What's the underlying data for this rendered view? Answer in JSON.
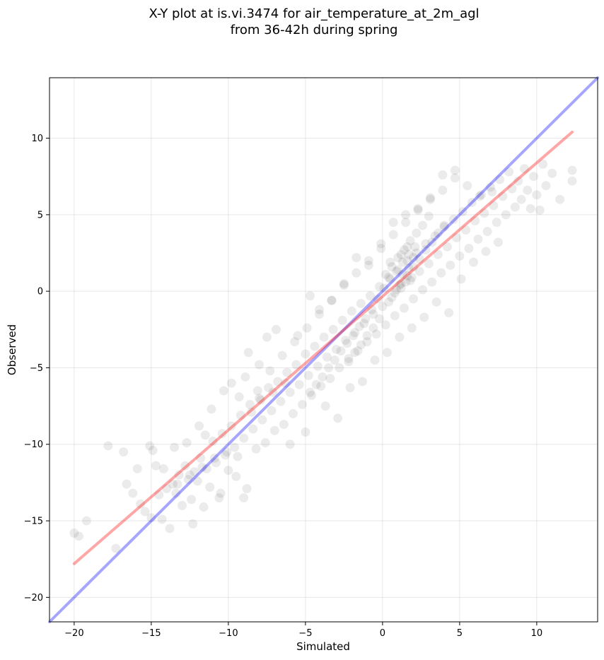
{
  "chart_data": {
    "type": "scatter",
    "title_lines": [
      "X-Y plot at is.vi.3474 for air_temperature_at_2m_agl",
      "from 36-42h during spring"
    ],
    "xlabel": "Simulated",
    "ylabel": "Observed",
    "xlim": [
      -21.6,
      13.95
    ],
    "ylim": [
      -21.6,
      13.95
    ],
    "xticks": [
      -20,
      -15,
      -10,
      -5,
      0,
      5,
      10
    ],
    "yticks": [
      -20,
      -15,
      -10,
      -5,
      0,
      5,
      10
    ],
    "tick_labels": [
      "−20",
      "−15",
      "−10",
      "−5",
      "0",
      "5",
      "10"
    ],
    "grid": true,
    "point_color": "#000000",
    "point_alpha": 0.08,
    "lines": [
      {
        "kind": "one-to-one",
        "color": "#0000ff",
        "alpha": 0.35,
        "x": [
          -21.6,
          13.95
        ],
        "y": [
          -21.6,
          13.95
        ]
      },
      {
        "kind": "fit",
        "color": "#ff0000",
        "alpha": 0.35,
        "x": [
          -20,
          12.3
        ],
        "y": [
          -17.8,
          10.4
        ]
      }
    ],
    "points": [
      [
        -20,
        -15.8
      ],
      [
        -19.7,
        -16.0
      ],
      [
        -19.2,
        -15.0
      ],
      [
        -17.8,
        -10.1
      ],
      [
        -17.3,
        -16.8
      ],
      [
        -16.8,
        -10.5
      ],
      [
        -16.6,
        -12.6
      ],
      [
        -16.2,
        -13.2
      ],
      [
        -15.9,
        -11.6
      ],
      [
        -15.7,
        -13.9
      ],
      [
        -15.4,
        -14.4
      ],
      [
        -15.1,
        -10.1
      ],
      [
        -15.0,
        -14.8
      ],
      [
        -14.9,
        -10.4
      ],
      [
        -14.7,
        -11.4
      ],
      [
        -14.5,
        -13.3
      ],
      [
        -14.3,
        -14.9
      ],
      [
        -14.0,
        -12.9
      ],
      [
        -13.8,
        -15.5
      ],
      [
        -13.6,
        -12.6
      ],
      [
        -13.4,
        -13.2
      ],
      [
        -13.2,
        -12.0
      ],
      [
        -13.0,
        -14.0
      ],
      [
        -12.8,
        -11.4
      ],
      [
        -12.6,
        -12.3
      ],
      [
        -12.4,
        -13.6
      ],
      [
        -12.2,
        -11.8
      ],
      [
        -12.0,
        -12.4
      ],
      [
        -11.8,
        -10.9
      ],
      [
        -11.6,
        -14.1
      ],
      [
        -11.4,
        -11.6
      ],
      [
        -11.2,
        -12.8
      ],
      [
        -11.0,
        -9.8
      ],
      [
        -10.8,
        -11.2
      ],
      [
        -10.6,
        -13.5
      ],
      [
        -10.4,
        -9.3
      ],
      [
        -10.2,
        -10.7
      ],
      [
        -10.0,
        -11.7
      ],
      [
        -9.8,
        -8.8
      ],
      [
        -9.6,
        -10.2
      ],
      [
        -9.4,
        -10.8
      ],
      [
        -9.2,
        -8.1
      ],
      [
        -9.0,
        -9.6
      ],
      [
        -8.8,
        -12.9
      ],
      [
        -8.6,
        -7.4
      ],
      [
        -8.4,
        -9.0
      ],
      [
        -8.2,
        -10.3
      ],
      [
        -8.0,
        -7.0
      ],
      [
        -7.8,
        -8.4
      ],
      [
        -7.6,
        -9.9
      ],
      [
        -7.4,
        -6.3
      ],
      [
        -7.2,
        -7.8
      ],
      [
        -7.0,
        -9.1
      ],
      [
        -6.8,
        -5.9
      ],
      [
        -6.6,
        -7.2
      ],
      [
        -6.4,
        -8.7
      ],
      [
        -6.2,
        -5.3
      ],
      [
        -6.0,
        -6.6
      ],
      [
        -5.8,
        -8.0
      ],
      [
        -5.6,
        -4.8
      ],
      [
        -5.4,
        -6.1
      ],
      [
        -5.2,
        -7.4
      ],
      [
        -5.0,
        -4.1
      ],
      [
        -4.8,
        -5.5
      ],
      [
        -4.6,
        -6.8
      ],
      [
        -4.4,
        -3.6
      ],
      [
        -4.2,
        -4.9
      ],
      [
        -4.0,
        -6.2
      ],
      [
        -3.8,
        -3.0
      ],
      [
        -3.6,
        -4.3
      ],
      [
        -3.4,
        -5.7
      ],
      [
        -3.2,
        -2.5
      ],
      [
        -3.0,
        -3.8
      ],
      [
        -2.8,
        -5.0
      ],
      [
        -2.6,
        -1.9
      ],
      [
        -2.4,
        -3.2
      ],
      [
        -2.2,
        -4.4
      ],
      [
        -2.0,
        -1.3
      ],
      [
        -1.8,
        -2.7
      ],
      [
        -1.6,
        -3.9
      ],
      [
        -1.4,
        -0.8
      ],
      [
        -1.2,
        -2.1
      ],
      [
        -1.0,
        -3.3
      ],
      [
        -0.8,
        -0.3
      ],
      [
        -0.6,
        -1.5
      ],
      [
        -0.4,
        -2.8
      ],
      [
        -0.2,
        0.3
      ],
      [
        0.0,
        -1.0
      ],
      [
        0.2,
        -2.2
      ],
      [
        0.4,
        0.9
      ],
      [
        0.6,
        -0.4
      ],
      [
        0.8,
        -1.6
      ],
      [
        1.0,
        1.4
      ],
      [
        1.2,
        0.2
      ],
      [
        1.4,
        -1.1
      ],
      [
        1.6,
        2.0
      ],
      [
        1.8,
        0.7
      ],
      [
        2.0,
        -0.5
      ],
      [
        2.2,
        2.5
      ],
      [
        2.4,
        1.3
      ],
      [
        2.6,
        0.1
      ],
      [
        2.8,
        3.1
      ],
      [
        3.0,
        1.8
      ],
      [
        3.2,
        0.6
      ],
      [
        3.4,
        3.6
      ],
      [
        3.6,
        2.4
      ],
      [
        3.8,
        1.2
      ],
      [
        4.0,
        4.2
      ],
      [
        4.2,
        2.9
      ],
      [
        4.4,
        1.7
      ],
      [
        4.6,
        4.7
      ],
      [
        4.8,
        3.5
      ],
      [
        5.0,
        2.3
      ],
      [
        5.2,
        5.2
      ],
      [
        5.4,
        4.0
      ],
      [
        5.6,
        2.8
      ],
      [
        5.8,
        5.8
      ],
      [
        6.0,
        4.6
      ],
      [
        6.2,
        3.4
      ],
      [
        6.4,
        6.3
      ],
      [
        6.6,
        5.1
      ],
      [
        6.8,
        3.9
      ],
      [
        7.0,
        6.8
      ],
      [
        7.2,
        5.6
      ],
      [
        7.4,
        4.5
      ],
      [
        7.6,
        7.3
      ],
      [
        7.8,
        6.2
      ],
      [
        8.0,
        5.0
      ],
      [
        8.2,
        7.8
      ],
      [
        8.4,
        6.7
      ],
      [
        8.6,
        5.5
      ],
      [
        8.8,
        7.2
      ],
      [
        9.0,
        6.0
      ],
      [
        9.2,
        8.0
      ],
      [
        9.4,
        6.6
      ],
      [
        9.6,
        5.4
      ],
      [
        9.8,
        7.5
      ],
      [
        10.0,
        6.3
      ],
      [
        10.2,
        5.3
      ],
      [
        10.4,
        8.3
      ],
      [
        10.6,
        6.9
      ],
      [
        11.0,
        7.7
      ],
      [
        11.5,
        6.0
      ],
      [
        12.3,
        7.9
      ],
      [
        12.3,
        7.2
      ],
      [
        -12.3,
        -15.2
      ],
      [
        -11.5,
        -9.4
      ],
      [
        -10.5,
        -13.2
      ],
      [
        -9.5,
        -12.1
      ],
      [
        -9.0,
        -13.5
      ],
      [
        -8.7,
        -4.0
      ],
      [
        -8.0,
        -4.8
      ],
      [
        -7.5,
        -3.0
      ],
      [
        -6.9,
        -2.5
      ],
      [
        -6.0,
        -10.0
      ],
      [
        -5.5,
        -2.9
      ],
      [
        -5.0,
        -9.2
      ],
      [
        -4.7,
        -0.3
      ],
      [
        -4.1,
        -1.2
      ],
      [
        -3.7,
        -7.5
      ],
      [
        -3.3,
        -0.6
      ],
      [
        -2.9,
        -8.3
      ],
      [
        -2.5,
        0.5
      ],
      [
        -2.1,
        -6.3
      ],
      [
        -1.7,
        2.2
      ],
      [
        -1.3,
        -5.9
      ],
      [
        -0.9,
        1.7
      ],
      [
        -0.5,
        -4.5
      ],
      [
        -0.1,
        3.1
      ],
      [
        0.3,
        -4.0
      ],
      [
        0.7,
        4.5
      ],
      [
        1.1,
        -3.0
      ],
      [
        1.5,
        5.0
      ],
      [
        1.9,
        -2.4
      ],
      [
        2.3,
        5.4
      ],
      [
        2.7,
        -1.7
      ],
      [
        3.1,
        6.1
      ],
      [
        3.5,
        -0.7
      ],
      [
        3.9,
        7.6
      ],
      [
        4.3,
        -1.4
      ],
      [
        4.7,
        7.9
      ],
      [
        5.1,
        0.8
      ],
      [
        5.5,
        6.9
      ],
      [
        5.9,
        1.9
      ],
      [
        6.3,
        6.2
      ],
      [
        6.7,
        2.6
      ],
      [
        7.1,
        6.5
      ],
      [
        7.5,
        3.2
      ],
      [
        -14.2,
        -11.6
      ],
      [
        -13.5,
        -10.2
      ],
      [
        -12.7,
        -9.9
      ],
      [
        -11.9,
        -8.8
      ],
      [
        -11.1,
        -7.7
      ],
      [
        -10.3,
        -6.5
      ],
      [
        -9.8,
        -6.0
      ],
      [
        -8.9,
        -5.6
      ],
      [
        -8.1,
        -6.5
      ],
      [
        -7.3,
        -5.2
      ],
      [
        -6.5,
        -4.2
      ],
      [
        -5.7,
        -3.3
      ],
      [
        -4.9,
        -2.4
      ],
      [
        -4.1,
        -1.5
      ],
      [
        -3.3,
        -0.6
      ],
      [
        -2.5,
        0.4
      ],
      [
        -1.7,
        1.2
      ],
      [
        -0.9,
        2.0
      ],
      [
        -0.1,
        2.8
      ],
      [
        0.7,
        3.7
      ],
      [
        1.5,
        4.5
      ],
      [
        2.3,
        5.3
      ],
      [
        3.1,
        6.0
      ],
      [
        3.9,
        6.6
      ],
      [
        4.7,
        7.4
      ],
      [
        -0.3,
        -0.5
      ],
      [
        0.1,
        0.2
      ],
      [
        0.5,
        0.8
      ],
      [
        0.9,
        1.3
      ],
      [
        1.3,
        1.9
      ],
      [
        1.7,
        2.4
      ],
      [
        2.1,
        2.9
      ],
      [
        -0.7,
        -1.2
      ],
      [
        -1.1,
        -1.8
      ],
      [
        -1.5,
        -2.3
      ],
      [
        -1.9,
        -2.9
      ],
      [
        -2.3,
        -3.4
      ],
      [
        -2.7,
        -3.9
      ],
      [
        -3.1,
        -4.5
      ],
      [
        -3.5,
        -5.0
      ],
      [
        -3.9,
        -5.6
      ],
      [
        -4.3,
        -6.1
      ],
      [
        -4.7,
        -6.6
      ],
      [
        0.2,
        1.1
      ],
      [
        0.6,
        1.6
      ],
      [
        1.0,
        2.2
      ],
      [
        1.4,
        2.7
      ],
      [
        1.8,
        3.3
      ],
      [
        2.2,
        3.8
      ],
      [
        2.6,
        4.3
      ],
      [
        3.0,
        4.9
      ],
      [
        -0.2,
        -1.8
      ],
      [
        -0.6,
        -2.4
      ],
      [
        -1.0,
        -2.9
      ],
      [
        -1.4,
        -3.5
      ],
      [
        -1.8,
        -4.0
      ],
      [
        -2.2,
        -4.6
      ],
      [
        0.4,
        -0.7
      ],
      [
        0.8,
        -0.1
      ],
      [
        1.2,
        0.5
      ],
      [
        1.6,
        1.0
      ],
      [
        2.0,
        1.6
      ],
      [
        2.4,
        2.1
      ],
      [
        2.8,
        2.7
      ],
      [
        3.2,
        3.2
      ],
      [
        3.6,
        3.8
      ],
      [
        4.0,
        4.3
      ],
      [
        1.1,
        0.4
      ],
      [
        1.3,
        1.1
      ],
      [
        1.5,
        0.6
      ],
      [
        1.7,
        1.5
      ],
      [
        1.9,
        0.9
      ],
      [
        0.9,
        0.1
      ],
      [
        1.2,
        2.4
      ],
      [
        1.6,
        2.9
      ],
      [
        2.0,
        2.2
      ],
      [
        0.5,
        1.9
      ],
      [
        -8.5,
        -7.9
      ],
      [
        -7.9,
        -7.1
      ],
      [
        -7.1,
        -6.6
      ],
      [
        -6.3,
        -6.0
      ],
      [
        -9.3,
        -6.9
      ],
      [
        -10.1,
        -10.5
      ],
      [
        -10.9,
        -10.9
      ],
      [
        -11.7,
        -11.5
      ],
      [
        -12.5,
        -12.0
      ],
      [
        -13.3,
        -12.6
      ]
    ]
  }
}
